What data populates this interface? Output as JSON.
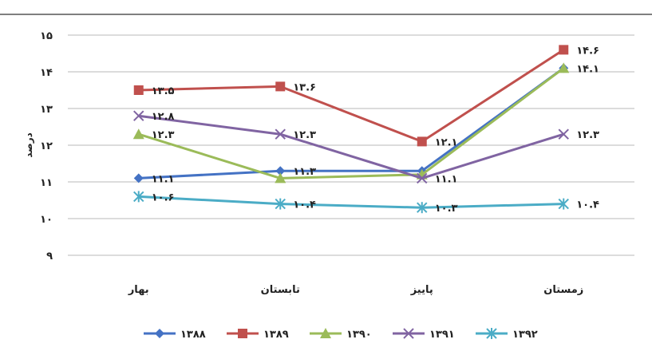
{
  "chart_data": {
    "type": "line",
    "title": "",
    "xlabel": "",
    "ylabel": "درصد",
    "ylim": [
      9,
      15
    ],
    "yticks": [
      9,
      10,
      11,
      12,
      13,
      14,
      15
    ],
    "ytick_labels": [
      "۹",
      "۱۰",
      "۱۱",
      "۱۲",
      "۱۳",
      "۱۴",
      "۱۵"
    ],
    "categories": [
      "بهار",
      "تابستان",
      "پاییز",
      "زمستان"
    ],
    "grid": true,
    "legend": "bottom",
    "series": [
      {
        "name": "۱۳۸۸",
        "color": "#4472C4",
        "marker": "diamond",
        "values": [
          11.1,
          11.3,
          11.3,
          14.1
        ],
        "labels": [
          "۱۱.۱",
          "۱۱.۳",
          "",
          "۱۴.۱"
        ]
      },
      {
        "name": "۱۳۸۹",
        "color": "#C0504D",
        "marker": "square",
        "values": [
          13.5,
          13.6,
          12.1,
          14.6
        ],
        "labels": [
          "۱۳.۵",
          "۱۳.۶",
          "۱۲.۱",
          "۱۴.۶"
        ]
      },
      {
        "name": "۱۳۹۰",
        "color": "#9BBB59",
        "marker": "triangle",
        "values": [
          12.3,
          11.1,
          11.2,
          14.1
        ],
        "labels": [
          "۱۲.۳",
          "",
          "",
          ""
        ]
      },
      {
        "name": "۱۳۹۱",
        "color": "#8064A2",
        "marker": "x",
        "values": [
          12.8,
          12.3,
          11.1,
          12.3
        ],
        "labels": [
          "۱۲.۸",
          "۱۲.۳",
          "۱۱.۱",
          "۱۲.۳"
        ]
      },
      {
        "name": "۱۳۹۲",
        "color": "#4BACC6",
        "marker": "star",
        "values": [
          10.6,
          10.4,
          10.3,
          10.4
        ],
        "labels": [
          "۱۰.۶",
          "۱۰.۴",
          "۱۰.۳",
          "۱۰.۴"
        ]
      }
    ]
  }
}
